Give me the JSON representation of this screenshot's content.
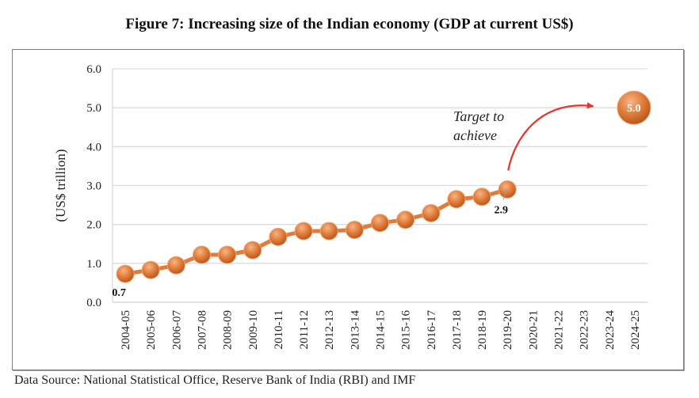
{
  "chart_data": {
    "type": "line",
    "title": "Figure 7: Increasing size of the Indian economy (GDP at current US$)",
    "xlabel": "",
    "ylabel": "(US$ trillion)",
    "ylim": [
      0,
      6
    ],
    "yticks": [
      "0.0",
      "1.0",
      "2.0",
      "3.0",
      "4.0",
      "5.0",
      "6.0"
    ],
    "grid": true,
    "categories": [
      "2004-05",
      "2005-06",
      "2006-07",
      "2007-08",
      "2008-09",
      "2009-10",
      "2010-11",
      "2011-12",
      "2012-13",
      "2013-14",
      "2014-15",
      "2015-16",
      "2016-17",
      "2017-18",
      "2018-19",
      "2019-20",
      "2020-21",
      "2021-22",
      "2022-23",
      "2023-24",
      "2024-25"
    ],
    "series": [
      {
        "name": "GDP (US$ trillion)",
        "color": "#e07b39",
        "values": [
          0.73,
          0.83,
          0.95,
          1.22,
          1.22,
          1.34,
          1.68,
          1.83,
          1.83,
          1.86,
          2.04,
          2.12,
          2.29,
          2.65,
          2.71,
          2.9,
          null,
          null,
          null,
          null,
          null
        ]
      }
    ],
    "data_labels": [
      {
        "category": "2004-05",
        "text": "0.7"
      },
      {
        "category": "2019-20",
        "text": "2.9"
      }
    ],
    "target": {
      "category": "2024-25",
      "value": 5.0,
      "text": "5.0",
      "color": "#e07b39"
    },
    "annotations": [
      {
        "text_lines": [
          "Target to",
          "achieve"
        ],
        "arrow_color": "#e8332a",
        "from_category": "2019-20",
        "to_category": "2022-23"
      }
    ],
    "legend": "none"
  },
  "source": "Data Source: National Statistical Office, Reserve Bank of India (RBI) and IMF"
}
